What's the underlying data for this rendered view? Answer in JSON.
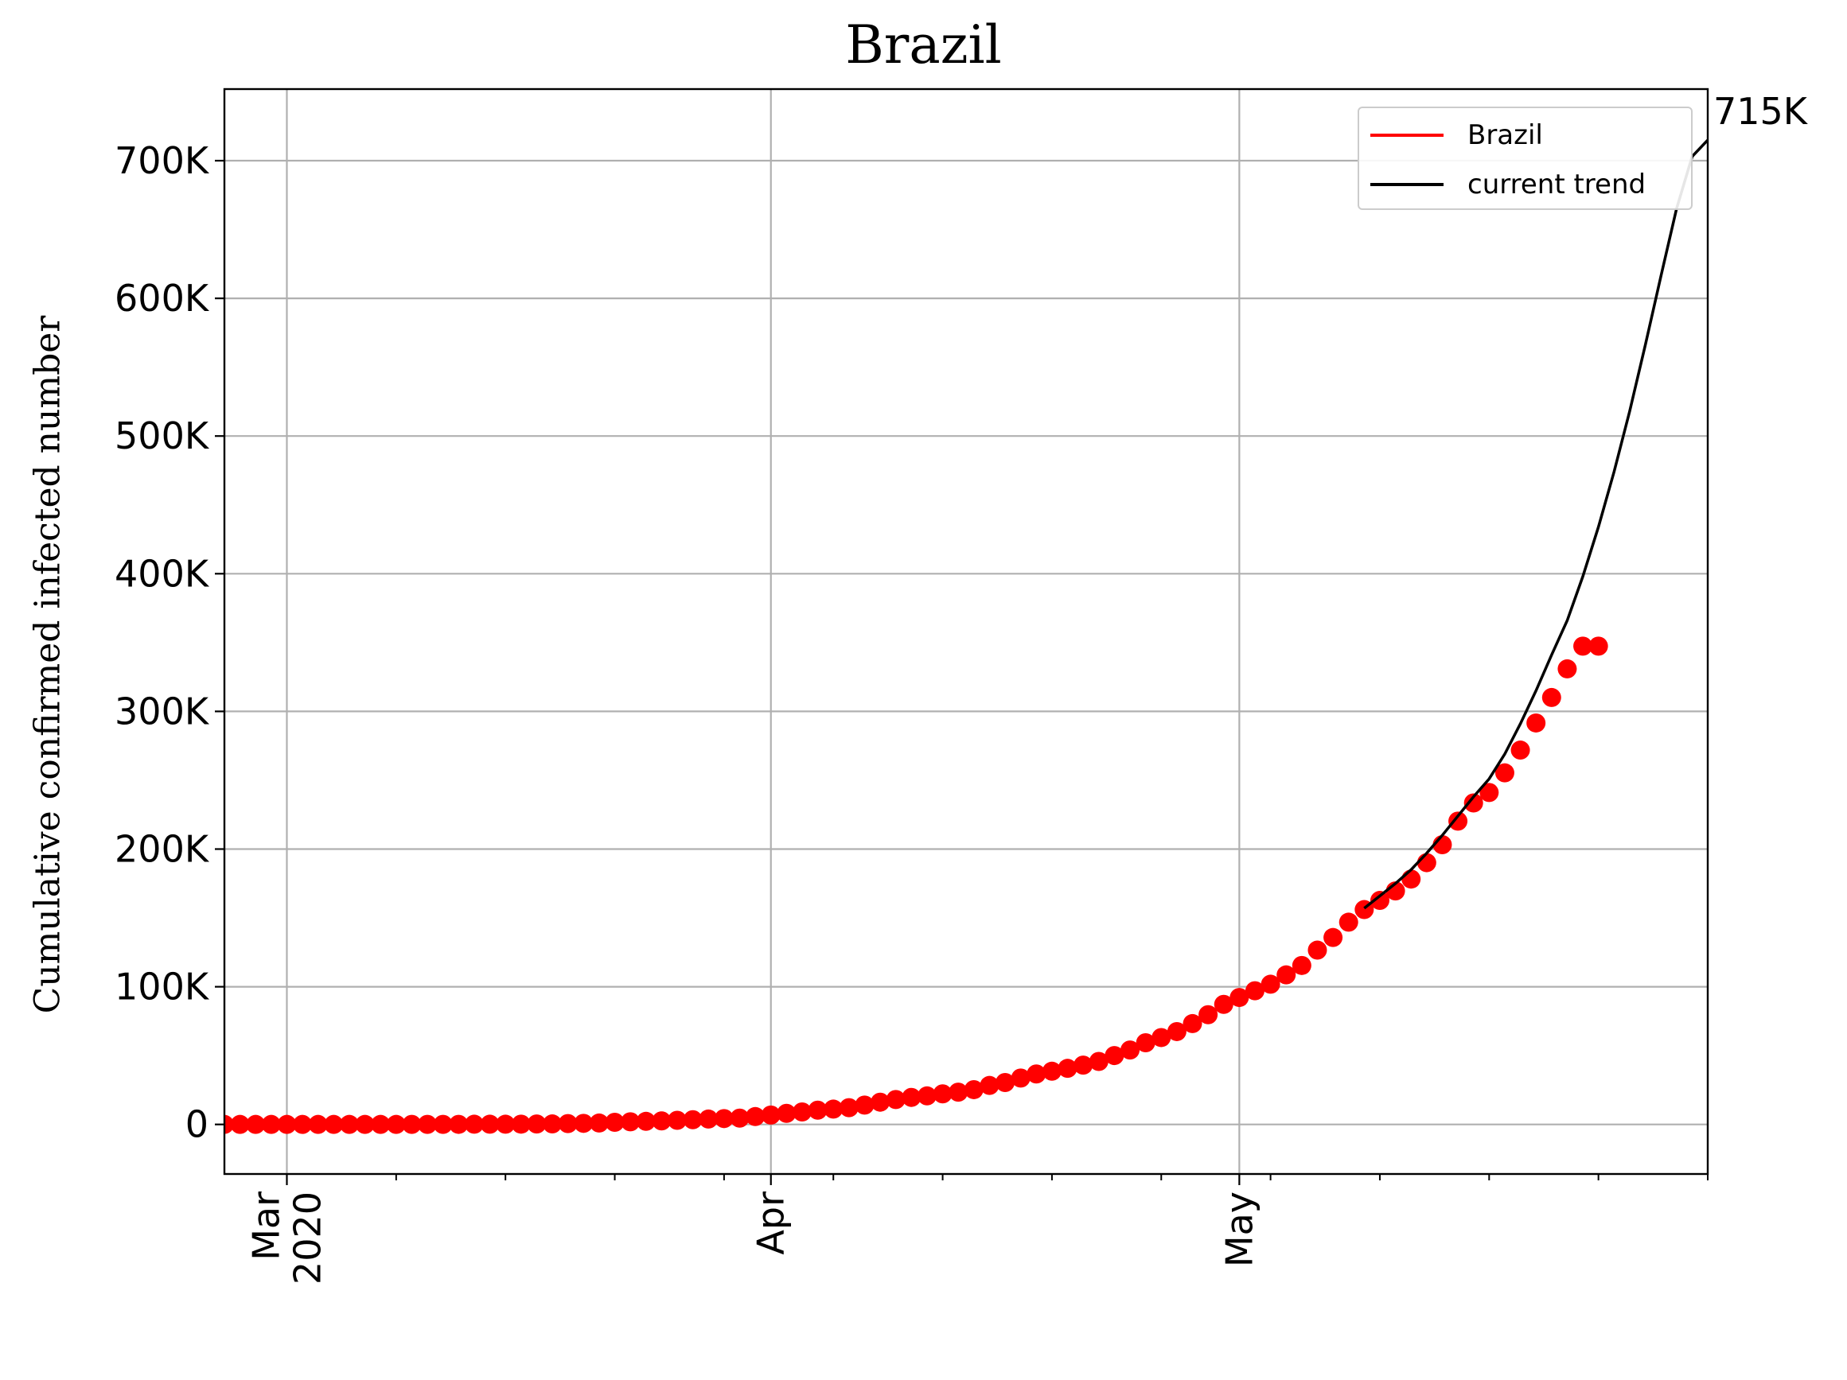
{
  "chart_data": {
    "type": "scatter",
    "title": "Brazil",
    "ylabel": "Cumulative confirmed infected number",
    "xlabel": "",
    "x_ticks": [
      {
        "date": "2020-03-01",
        "label": "Mar\n2020"
      },
      {
        "date": "2020-04-01",
        "label": "Apr"
      },
      {
        "date": "2020-05-01",
        "label": "May"
      }
    ],
    "y_ticks": [
      {
        "value": 0,
        "label": "0"
      },
      {
        "value": 100000,
        "label": "100K"
      },
      {
        "value": 200000,
        "label": "200K"
      },
      {
        "value": 300000,
        "label": "300K"
      },
      {
        "value": 400000,
        "label": "400K"
      },
      {
        "value": 500000,
        "label": "500K"
      },
      {
        "value": 600000,
        "label": "600K"
      },
      {
        "value": 700000,
        "label": "700K"
      }
    ],
    "xlim": [
      "2020-02-26",
      "2020-05-31"
    ],
    "ylim": [
      -36000,
      752000
    ],
    "grid": true,
    "legend_position": "top-right",
    "series": [
      {
        "name": "Brazil",
        "color": "#ff0000",
        "kind": "markers",
        "x": [
          "2020-02-26",
          "2020-02-27",
          "2020-02-28",
          "2020-02-29",
          "2020-03-01",
          "2020-03-02",
          "2020-03-03",
          "2020-03-04",
          "2020-03-05",
          "2020-03-06",
          "2020-03-07",
          "2020-03-08",
          "2020-03-09",
          "2020-03-10",
          "2020-03-11",
          "2020-03-12",
          "2020-03-13",
          "2020-03-14",
          "2020-03-15",
          "2020-03-16",
          "2020-03-17",
          "2020-03-18",
          "2020-03-19",
          "2020-03-20",
          "2020-03-21",
          "2020-03-22",
          "2020-03-23",
          "2020-03-24",
          "2020-03-25",
          "2020-03-26",
          "2020-03-27",
          "2020-03-28",
          "2020-03-29",
          "2020-03-30",
          "2020-03-31",
          "2020-04-01",
          "2020-04-02",
          "2020-04-03",
          "2020-04-04",
          "2020-04-05",
          "2020-04-06",
          "2020-04-07",
          "2020-04-08",
          "2020-04-09",
          "2020-04-10",
          "2020-04-11",
          "2020-04-12",
          "2020-04-13",
          "2020-04-14",
          "2020-04-15",
          "2020-04-16",
          "2020-04-17",
          "2020-04-18",
          "2020-04-19",
          "2020-04-20",
          "2020-04-21",
          "2020-04-22",
          "2020-04-23",
          "2020-04-24",
          "2020-04-25",
          "2020-04-26",
          "2020-04-27",
          "2020-04-28",
          "2020-04-29",
          "2020-04-30",
          "2020-05-01",
          "2020-05-02",
          "2020-05-03",
          "2020-05-04",
          "2020-05-05",
          "2020-05-06",
          "2020-05-07",
          "2020-05-08",
          "2020-05-09",
          "2020-05-10",
          "2020-05-11",
          "2020-05-12",
          "2020-05-13",
          "2020-05-14",
          "2020-05-15",
          "2020-05-16",
          "2020-05-17",
          "2020-05-18",
          "2020-05-19",
          "2020-05-20",
          "2020-05-21",
          "2020-05-22",
          "2020-05-23",
          "2020-05-24"
        ],
        "y": [
          1,
          1,
          1,
          2,
          2,
          2,
          2,
          4,
          8,
          13,
          13,
          20,
          25,
          31,
          38,
          52,
          151,
          151,
          162,
          200,
          321,
          372,
          621,
          793,
          1021,
          1546,
          1924,
          2247,
          2554,
          2985,
          3417,
          3904,
          4256,
          4579,
          5717,
          6836,
          8044,
          9056,
          10360,
          11130,
          12161,
          14034,
          16170,
          18092,
          19638,
          20727,
          22192,
          23430,
          25262,
          28320,
          30425,
          33682,
          36658,
          38654,
          40743,
          43079,
          45757,
          50036,
          54043,
          59324,
          63100,
          67446,
          73235,
          79685,
          87187,
          92202,
          97100,
          101826,
          108620,
          115455,
          126611,
          135773,
          146894,
          156061,
          162699,
          169594,
          178214,
          190137,
          203165,
          220291,
          233511,
          241080,
          255368,
          271885,
          291579,
          310087,
          330890,
          347398,
          347398
        ]
      },
      {
        "name": "current trend",
        "color": "#000000",
        "kind": "line",
        "x": [
          "2020-05-09",
          "2020-05-10",
          "2020-05-11",
          "2020-05-12",
          "2020-05-13",
          "2020-05-14",
          "2020-05-15",
          "2020-05-16",
          "2020-05-17",
          "2020-05-18",
          "2020-05-19",
          "2020-05-20",
          "2020-05-21",
          "2020-05-22",
          "2020-05-23",
          "2020-05-24",
          "2020-05-25",
          "2020-05-26",
          "2020-05-27",
          "2020-05-28",
          "2020-05-29",
          "2020-05-30",
          "2020-05-31"
        ],
        "y": [
          157000,
          166000,
          175000,
          185000,
          197000,
          210000,
          224000,
          238000,
          251000,
          269000,
          291000,
          315000,
          341000,
          366000,
          398000,
          434000,
          474000,
          518000,
          566000,
          616000,
          665000,
          703000,
          715000
        ]
      }
    ],
    "annotations": [
      {
        "text": "715K",
        "anchor": "end of current trend"
      }
    ]
  }
}
